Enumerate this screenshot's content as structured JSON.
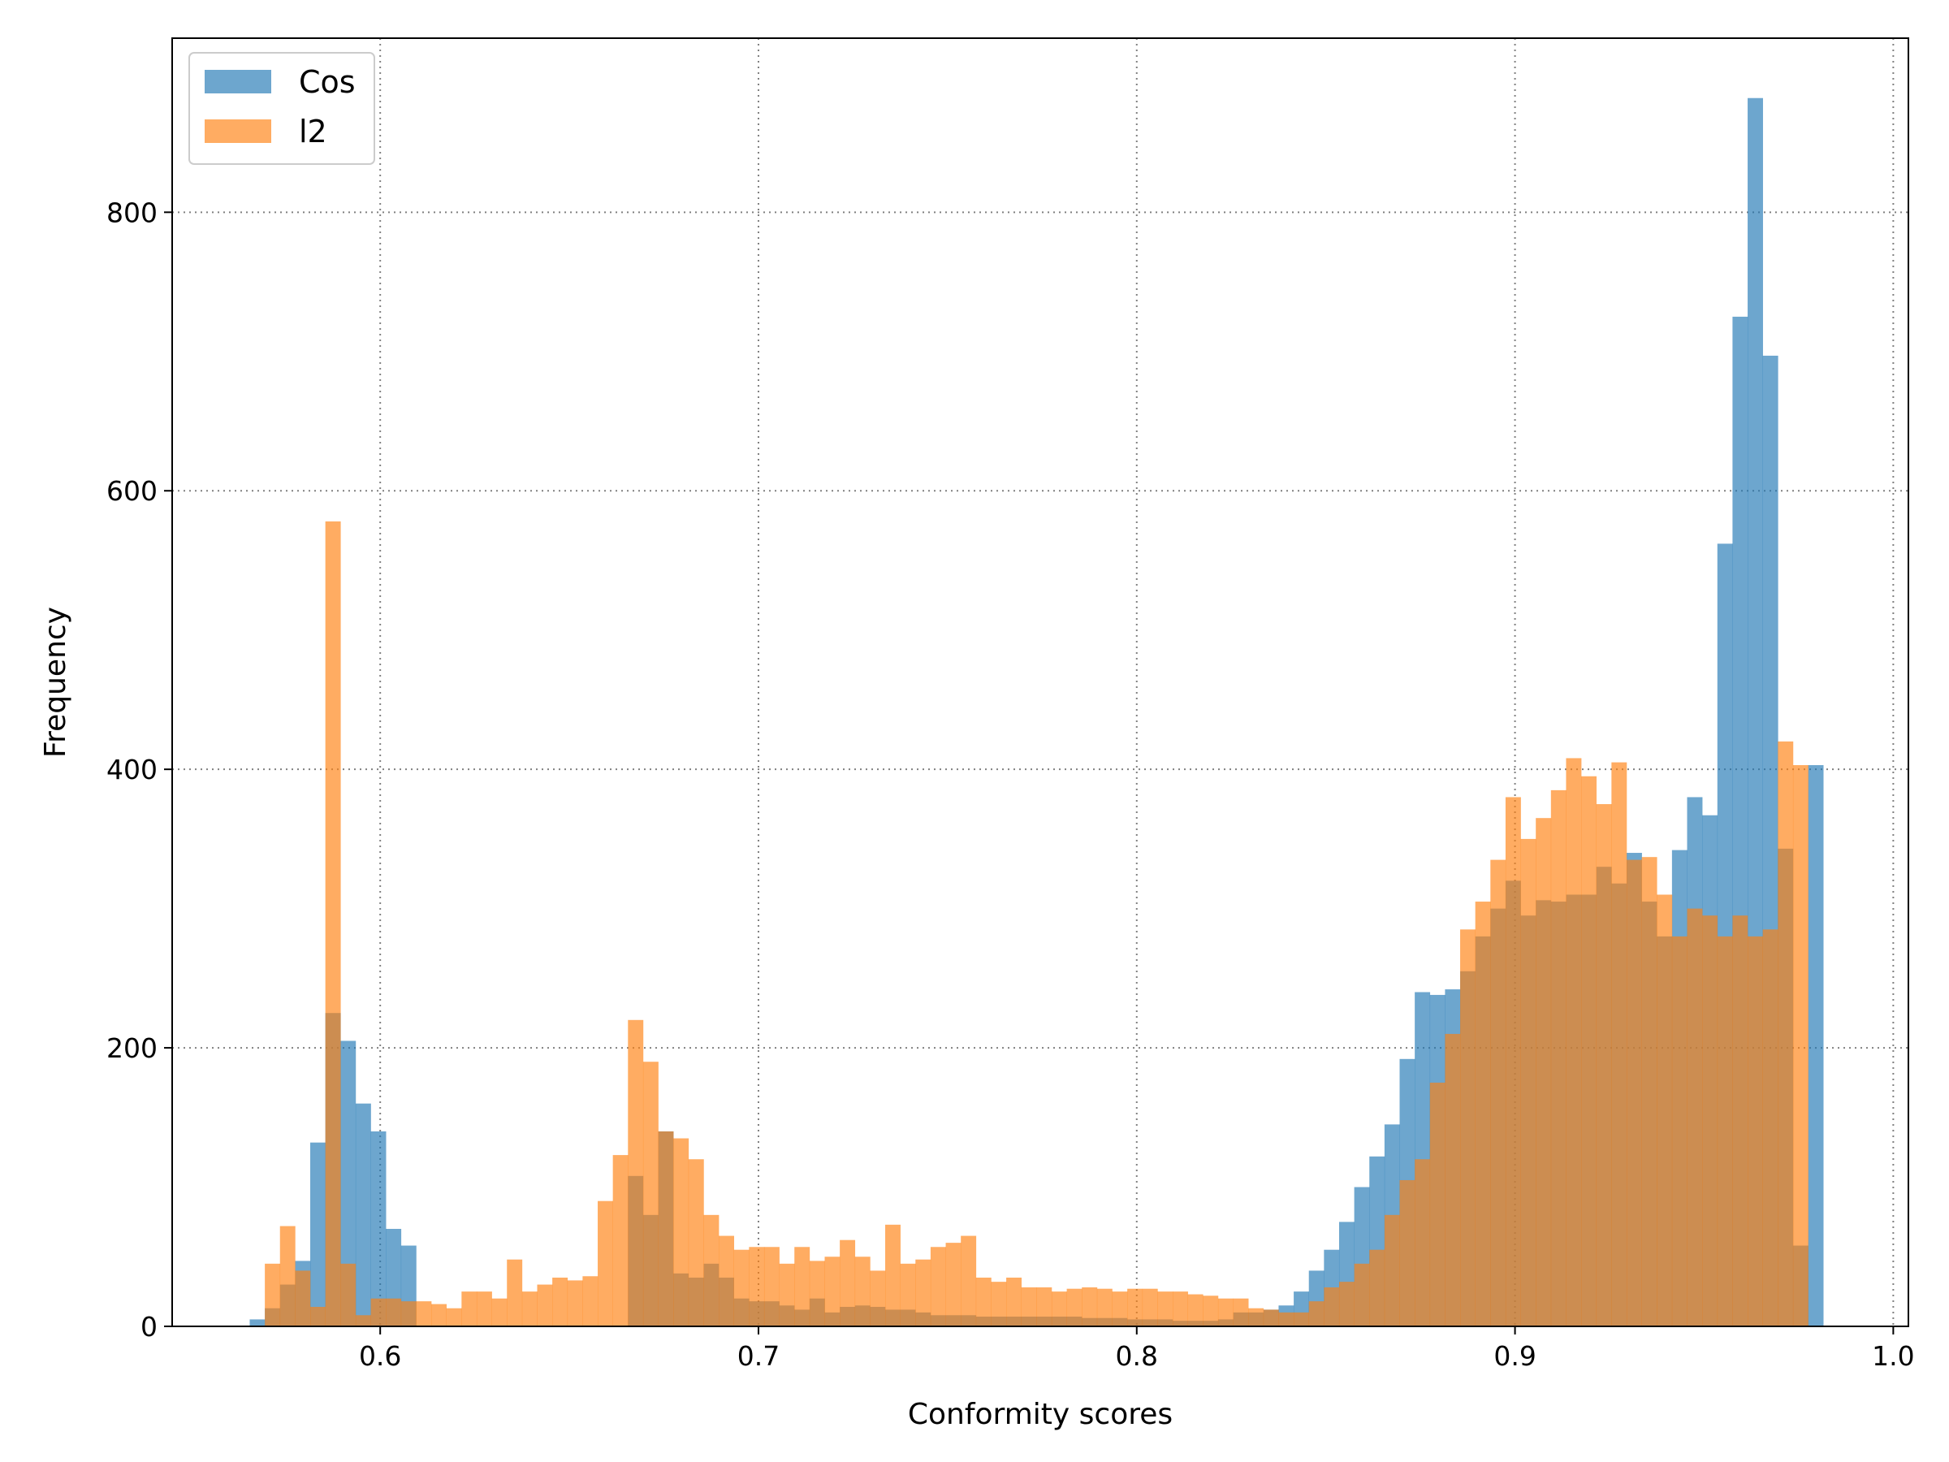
{
  "chart_data": {
    "type": "bar",
    "subtype": "histogram",
    "title": "",
    "xlabel": "Conformity scores",
    "ylabel": "Frequency",
    "xlim": [
      0.545,
      1.004
    ],
    "ylim": [
      0,
      925
    ],
    "xticks": [
      0.6,
      0.7,
      0.8,
      0.9,
      1.0
    ],
    "xtick_labels": [
      "0.6",
      "0.7",
      "0.8",
      "0.9",
      "1.0"
    ],
    "yticks": [
      0,
      200,
      400,
      600,
      800
    ],
    "ytick_labels": [
      "0",
      "200",
      "400",
      "600",
      "800"
    ],
    "grid": true,
    "legend_position": "upper-left",
    "series": [
      {
        "name": "Cos",
        "color": "#1f77b4",
        "opacity": 0.65,
        "bin_start": 0.5655,
        "bin_width": 0.004,
        "values": [
          5,
          13,
          30,
          47,
          132,
          225,
          205,
          160,
          140,
          70,
          58,
          0,
          0,
          0,
          0,
          0,
          0,
          0,
          0,
          0,
          0,
          0,
          0,
          0,
          0,
          108,
          80,
          140,
          38,
          35,
          45,
          35,
          20,
          18,
          18,
          15,
          12,
          20,
          10,
          14,
          15,
          14,
          12,
          12,
          10,
          8,
          8,
          8,
          7,
          7,
          7,
          7,
          7,
          7,
          7,
          6,
          6,
          6,
          5,
          5,
          5,
          4,
          4,
          4,
          5,
          10,
          10,
          12,
          15,
          25,
          40,
          55,
          75,
          100,
          122,
          145,
          192,
          240,
          238,
          242,
          255,
          280,
          300,
          320,
          295,
          306,
          305,
          310,
          310,
          330,
          318,
          340,
          305,
          280,
          342,
          380,
          367,
          562,
          725,
          882,
          697,
          343,
          58,
          403
        ]
      },
      {
        "name": "l2",
        "color": "#ff7f0e",
        "opacity": 0.65,
        "bin_start": 0.5695,
        "bin_width": 0.004,
        "values": [
          45,
          72,
          40,
          14,
          578,
          45,
          8,
          20,
          20,
          18,
          18,
          16,
          13,
          25,
          25,
          20,
          48,
          25,
          30,
          35,
          33,
          36,
          90,
          123,
          220,
          190,
          140,
          135,
          120,
          80,
          65,
          55,
          57,
          57,
          45,
          57,
          47,
          50,
          62,
          50,
          40,
          73,
          45,
          48,
          57,
          60,
          65,
          35,
          32,
          35,
          28,
          28,
          25,
          27,
          28,
          27,
          25,
          27,
          27,
          25,
          25,
          23,
          22,
          20,
          20,
          13,
          12,
          10,
          10,
          18,
          28,
          32,
          45,
          55,
          80,
          105,
          120,
          175,
          210,
          285,
          305,
          335,
          380,
          350,
          365,
          385,
          408,
          395,
          375,
          405,
          335,
          337,
          310,
          280,
          300,
          295,
          280,
          295,
          280,
          285,
          420,
          403
        ]
      }
    ]
  }
}
